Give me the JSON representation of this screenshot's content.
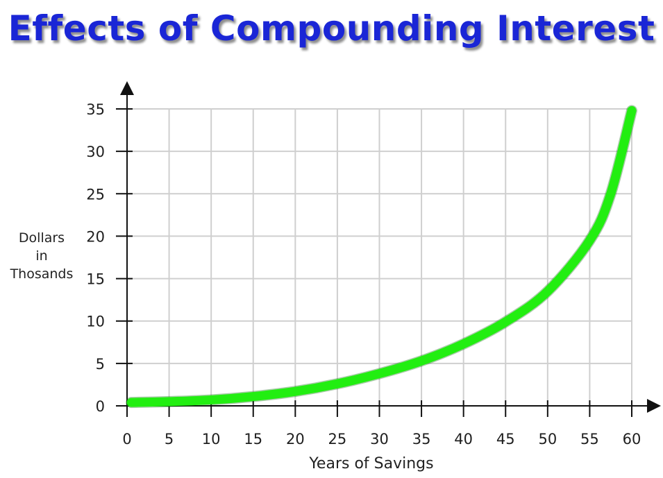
{
  "chart_data": {
    "type": "line",
    "title": "Effects of Compounding Interest",
    "xlabel": "Years of Savings",
    "ylabel_lines": [
      "Dollars",
      "in",
      "Thosands"
    ],
    "xlim": [
      0,
      60
    ],
    "ylim": [
      0,
      35
    ],
    "x_ticks": [
      0,
      5,
      10,
      15,
      20,
      25,
      30,
      35,
      40,
      45,
      50,
      55,
      60
    ],
    "y_ticks": [
      0,
      5,
      10,
      15,
      20,
      25,
      30,
      35
    ],
    "grid": true,
    "series": [
      {
        "x": [
          0.5,
          5,
          10,
          15,
          20,
          25,
          30,
          35,
          40,
          45,
          50,
          55,
          57.5,
          60
        ],
        "y": [
          0.4,
          0.5,
          0.7,
          1.1,
          1.7,
          2.6,
          3.8,
          5.3,
          7.3,
          9.9,
          13.5,
          19.5,
          25,
          34.8
        ],
        "color": "#22ee11"
      }
    ]
  }
}
